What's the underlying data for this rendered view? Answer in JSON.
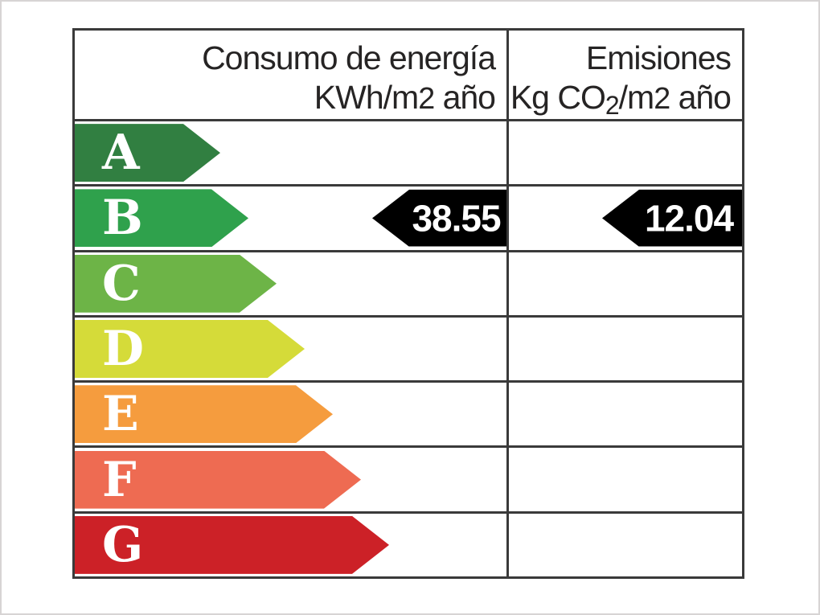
{
  "header": {
    "consumption": {
      "line1": "Consumo de energía",
      "line2_prefix": "KWh/m",
      "line2_sup": "2",
      "line2_suffix": " año"
    },
    "emissions": {
      "line1": "Emisiones",
      "line2_prefix": "Kg CO",
      "line2_sub": "2",
      "line2_mid": "/m",
      "line2_sup": "2",
      "line2_suffix": " año"
    }
  },
  "ratings": [
    {
      "letter": "A",
      "color": "#317f41"
    },
    {
      "letter": "B",
      "color": "#2fa14c"
    },
    {
      "letter": "C",
      "color": "#6db447"
    },
    {
      "letter": "D",
      "color": "#d5db39"
    },
    {
      "letter": "E",
      "color": "#f59c3e"
    },
    {
      "letter": "F",
      "color": "#ee6b52"
    },
    {
      "letter": "G",
      "color": "#cc2127"
    }
  ],
  "rating_letter_color": "#ffffff",
  "grid_line_color": "#3a3a3a",
  "indicators": {
    "consumption": {
      "value": "38.55",
      "rating": "B",
      "arrow_color": "#000000",
      "text_color": "#ffffff"
    },
    "emissions": {
      "value": "12.04",
      "rating": "B",
      "arrow_color": "#000000",
      "text_color": "#ffffff"
    }
  },
  "chart_data": {
    "type": "bar",
    "categories": [
      "A",
      "B",
      "C",
      "D",
      "E",
      "F",
      "G"
    ],
    "category_colors": [
      "#317f41",
      "#2fa14c",
      "#6db447",
      "#d5db39",
      "#f59c3e",
      "#ee6b52",
      "#cc2127"
    ],
    "series": [
      {
        "name": "Consumo de energía KWh/m2 año",
        "rating": "B",
        "value": 38.55
      },
      {
        "name": "Emisiones Kg CO2/m2 año",
        "rating": "B",
        "value": 12.04
      }
    ],
    "orientation": "horizontal",
    "legend_position": "none",
    "grid": true,
    "notes": "Spanish energy efficiency certificate ladder; arrow length increases from A to G; black left-pointing arrows mark the achieved rating values on row B."
  }
}
